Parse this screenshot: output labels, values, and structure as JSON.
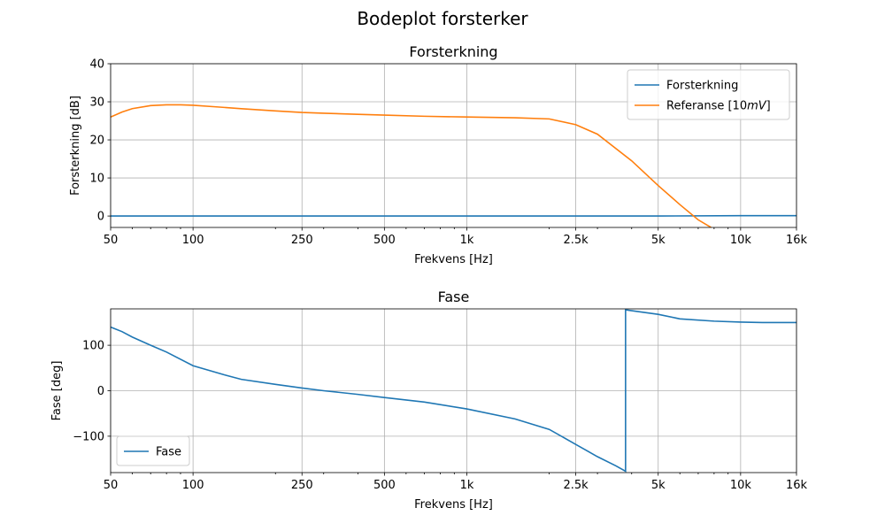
{
  "figure": {
    "title": "Bodeplot forsterker"
  },
  "chart_data": [
    {
      "type": "line",
      "title": "Forsterkning",
      "xlabel": "Frekvens [Hz]",
      "ylabel": "Forsterkning [dB]",
      "xscale": "log",
      "xlim": [
        50,
        16000
      ],
      "ylim": [
        -3,
        40
      ],
      "xticks": [
        50,
        100,
        250,
        500,
        1000,
        2500,
        5000,
        10000,
        16000
      ],
      "xticklabels": [
        "50",
        "100",
        "250",
        "500",
        "1k",
        "2.5k",
        "5k",
        "10k",
        "16k"
      ],
      "yticks": [
        0,
        10,
        20,
        30,
        40
      ],
      "yticklabels": [
        "0",
        "10",
        "20",
        "30",
        "40"
      ],
      "grid": true,
      "legend": "top-right",
      "series": [
        {
          "name": "Forsterkning",
          "color": "#1f77b4",
          "x": [
            50,
            100,
            250,
            500,
            1000,
            2500,
            5000,
            10000,
            16000
          ],
          "y": [
            0,
            0,
            0,
            0,
            0,
            0,
            0,
            0.1,
            0.1
          ]
        },
        {
          "name": "Referanse [10mV]",
          "color": "#ff7f0e",
          "x": [
            50,
            55,
            60,
            70,
            80,
            90,
            100,
            120,
            150,
            200,
            250,
            300,
            400,
            500,
            700,
            1000,
            1500,
            2000,
            2500,
            3000,
            4000,
            5000,
            6000,
            7000,
            7800
          ],
          "y": [
            26,
            27.3,
            28.2,
            29,
            29.2,
            29.2,
            29.1,
            28.7,
            28.2,
            27.6,
            27.2,
            27,
            26.7,
            26.5,
            26.2,
            26,
            25.8,
            25.5,
            24,
            21.5,
            14.5,
            8,
            3,
            -1,
            -3
          ]
        }
      ]
    },
    {
      "type": "line",
      "title": "Fase",
      "xlabel": "Frekvens [Hz]",
      "ylabel": "Fase [deg]",
      "xscale": "log",
      "xlim": [
        50,
        16000
      ],
      "ylim": [
        -180,
        180
      ],
      "xticks": [
        50,
        100,
        250,
        500,
        1000,
        2500,
        5000,
        10000,
        16000
      ],
      "xticklabels": [
        "50",
        "100",
        "250",
        "500",
        "1k",
        "2.5k",
        "5k",
        "10k",
        "16k"
      ],
      "yticks": [
        -100,
        0,
        100
      ],
      "yticklabels": [
        "−100",
        "0",
        "100"
      ],
      "grid": true,
      "legend": "bottom-left",
      "series": [
        {
          "name": "Fase",
          "color": "#1f77b4",
          "x": [
            50,
            55,
            60,
            70,
            80,
            100,
            130,
            150,
            200,
            250,
            300,
            400,
            500,
            700,
            1000,
            1500,
            2000,
            2500,
            3000,
            3500,
            3800,
            3800,
            4000,
            5000,
            6000,
            8000,
            10000,
            12000,
            16000
          ],
          "y": [
            140,
            130,
            118,
            100,
            85,
            55,
            35,
            25,
            14,
            6,
            0,
            -8,
            -15,
            -25,
            -40,
            -62,
            -85,
            -118,
            -145,
            -165,
            -177,
            178,
            176,
            168,
            158,
            153,
            151,
            150,
            150
          ]
        }
      ]
    }
  ]
}
